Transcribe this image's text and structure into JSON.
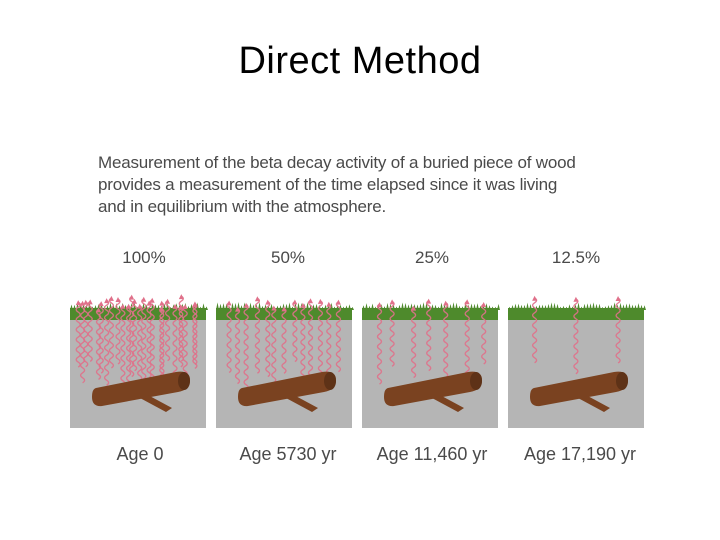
{
  "slide": {
    "title": "Direct Method"
  },
  "figure": {
    "caption_lines": [
      "Measurement of the beta decay activity of a buried piece of wood",
      "provides a measurement of the time elapsed since it was living",
      "and in equilibrium with the atmosphere."
    ],
    "panels": [
      {
        "percent": "100%",
        "age": "Age 0",
        "activity_fraction": 1.0
      },
      {
        "percent": "50%",
        "age": "Age 5730 yr",
        "activity_fraction": 0.5
      },
      {
        "percent": "25%",
        "age": "Age 11,460 yr",
        "activity_fraction": 0.25
      },
      {
        "percent": "12.5%",
        "age": "Age 17,190 yr",
        "activity_fraction": 0.125
      }
    ]
  },
  "colors": {
    "soil": "#b5b5b5",
    "grass": "#4e8a2c",
    "log": "#7a4220",
    "decay_arrow": "#e0708a"
  }
}
